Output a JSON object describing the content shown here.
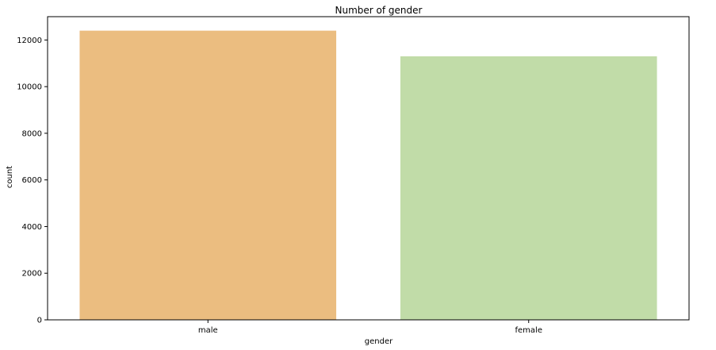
{
  "chart_data": {
    "type": "bar",
    "title": "Number of gender",
    "xlabel": "gender",
    "ylabel": "count",
    "categories": [
      "male",
      "female"
    ],
    "values": [
      12400,
      11300
    ],
    "colors": [
      "#ebbd80",
      "#c1dca8"
    ],
    "ylim": [
      0,
      13000
    ],
    "yticks": [
      0,
      2000,
      4000,
      6000,
      8000,
      10000,
      12000
    ],
    "grid": false,
    "legend": "none"
  }
}
